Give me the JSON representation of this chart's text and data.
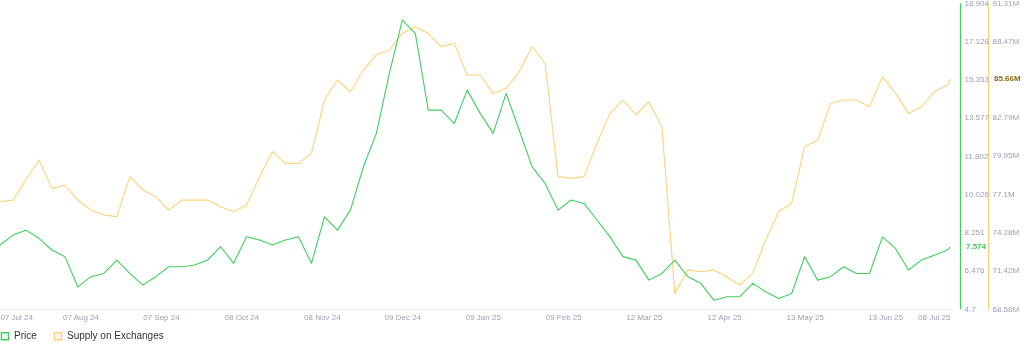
{
  "chart_data": {
    "type": "line",
    "legend": "bottom",
    "grid": false,
    "x": [
      "2024-07-07",
      "2024-07-12",
      "2024-07-17",
      "2024-07-22",
      "2024-07-27",
      "2024-08-01",
      "2024-08-06",
      "2024-08-11",
      "2024-08-16",
      "2024-08-21",
      "2024-08-26",
      "2024-08-31",
      "2024-09-05",
      "2024-09-10",
      "2024-09-15",
      "2024-09-20",
      "2024-09-25",
      "2024-09-30",
      "2024-10-05",
      "2024-10-10",
      "2024-10-15",
      "2024-10-20",
      "2024-10-25",
      "2024-10-30",
      "2024-11-04",
      "2024-11-09",
      "2024-11-14",
      "2024-11-19",
      "2024-11-24",
      "2024-11-29",
      "2024-12-04",
      "2024-12-09",
      "2024-12-14",
      "2024-12-19",
      "2024-12-24",
      "2024-12-29",
      "2025-01-03",
      "2025-01-08",
      "2025-01-13",
      "2025-01-18",
      "2025-01-23",
      "2025-01-28",
      "2025-02-02",
      "2025-02-07",
      "2025-02-12",
      "2025-02-17",
      "2025-02-22",
      "2025-02-27",
      "2025-03-04",
      "2025-03-09",
      "2025-03-14",
      "2025-03-19",
      "2025-03-24",
      "2025-03-29",
      "2025-04-03",
      "2025-04-08",
      "2025-04-13",
      "2025-04-18",
      "2025-04-23",
      "2025-04-28",
      "2025-05-03",
      "2025-05-08",
      "2025-05-13",
      "2025-05-18",
      "2025-05-23",
      "2025-05-28",
      "2025-06-02",
      "2025-06-07",
      "2025-06-12",
      "2025-06-17",
      "2025-06-22",
      "2025-06-27",
      "2025-07-02",
      "2025-07-07",
      "2025-07-08"
    ],
    "series": [
      {
        "name": "Price",
        "color": "#3fcf5e",
        "values": [
          7.67,
          8.13,
          8.36,
          7.98,
          7.44,
          7.13,
          5.73,
          6.2,
          6.35,
          6.97,
          6.35,
          5.81,
          6.2,
          6.66,
          6.66,
          6.74,
          6.97,
          7.59,
          6.82,
          8.05,
          7.9,
          7.67,
          7.9,
          8.05,
          6.82,
          8.98,
          8.36,
          9.29,
          11.3,
          12.85,
          15.64,
          18.11,
          17.49,
          13.93,
          13.93,
          13.31,
          14.86,
          13.78,
          12.85,
          14.71,
          13.01,
          11.3,
          10.53,
          9.29,
          9.76,
          9.6,
          8.83,
          8.05,
          7.13,
          6.97,
          6.04,
          6.35,
          6.97,
          6.2,
          5.89,
          5.11,
          5.27,
          5.27,
          5.89,
          5.5,
          5.19,
          5.42,
          7.13,
          6.04,
          6.2,
          6.66,
          6.35,
          6.35,
          8.05,
          7.51,
          6.51,
          6.97,
          7.2,
          7.44,
          7.574
        ]
      },
      {
        "name": "Supply on Exchanges",
        "color": "#ffd27a",
        "axis": "y2",
        "values": [
          76.55,
          76.67,
          78.16,
          79.65,
          77.54,
          77.79,
          76.67,
          75.93,
          75.56,
          75.44,
          78.41,
          77.42,
          76.92,
          75.93,
          76.67,
          76.67,
          76.67,
          76.18,
          75.81,
          76.3,
          78.41,
          80.27,
          79.4,
          79.4,
          80.14,
          84.1,
          85.59,
          84.72,
          86.33,
          87.45,
          87.82,
          89.05,
          89.55,
          89.05,
          88.06,
          88.31,
          85.96,
          85.96,
          84.6,
          84.97,
          86.21,
          88.06,
          86.83,
          78.41,
          78.28,
          78.41,
          80.89,
          83.11,
          84.1,
          82.99,
          83.98,
          82.12,
          69.74,
          71.47,
          71.35,
          71.47,
          70.98,
          70.36,
          71.23,
          73.7,
          75.81,
          76.43,
          80.64,
          81.13,
          83.85,
          84.1,
          84.1,
          83.61,
          85.84,
          84.6,
          83.11,
          83.61,
          84.72,
          85.22,
          85.66
        ]
      }
    ],
    "xlim": [
      "2024-07-07",
      "2025-07-08"
    ],
    "xticks": [
      {
        "value": "2024-07-07",
        "label": "07 Jul 24"
      },
      {
        "value": "2024-08-07",
        "label": "07 Aug 24"
      },
      {
        "value": "2024-09-07",
        "label": "07 Sep 24"
      },
      {
        "value": "2024-10-08",
        "label": "08 Oct 24"
      },
      {
        "value": "2024-11-08",
        "label": "08 Nov 24"
      },
      {
        "value": "2024-12-09",
        "label": "09 Dec 24"
      },
      {
        "value": "2025-01-09",
        "label": "09 Jan 25"
      },
      {
        "value": "2025-02-09",
        "label": "09 Feb 25"
      },
      {
        "value": "2025-03-12",
        "label": "12 Mar 25"
      },
      {
        "value": "2025-04-12",
        "label": "12 Apr 25"
      },
      {
        "value": "2025-05-13",
        "label": "13 May 25"
      },
      {
        "value": "2025-06-13",
        "label": "13 Jun 25"
      },
      {
        "value": "2025-07-08",
        "label": "08 Jul 25"
      }
    ],
    "ylim": [
      4.7,
      18.904
    ],
    "yticks": [
      4.7,
      6.476,
      8.251,
      10.026,
      11.802,
      13.577,
      15.353,
      17.128,
      18.904
    ],
    "y2lim": [
      68.58,
      91.31
    ],
    "y2ticks": [
      {
        "value": 68.58,
        "label": "68.58M"
      },
      {
        "value": 71.42,
        "label": "71.42M"
      },
      {
        "value": 74.28,
        "label": "74.28M"
      },
      {
        "value": 77.1,
        "label": "77.1M"
      },
      {
        "value": 79.95,
        "label": "79.95M"
      },
      {
        "value": 82.79,
        "label": "82.79M"
      },
      {
        "value": 88.47,
        "label": "88.47M"
      },
      {
        "value": 91.31,
        "label": "91.31M"
      }
    ],
    "annotations": [
      {
        "text": "7.574",
        "x": "2025-07-08",
        "y": 7.574
      },
      "85.66M"
    ]
  }
}
